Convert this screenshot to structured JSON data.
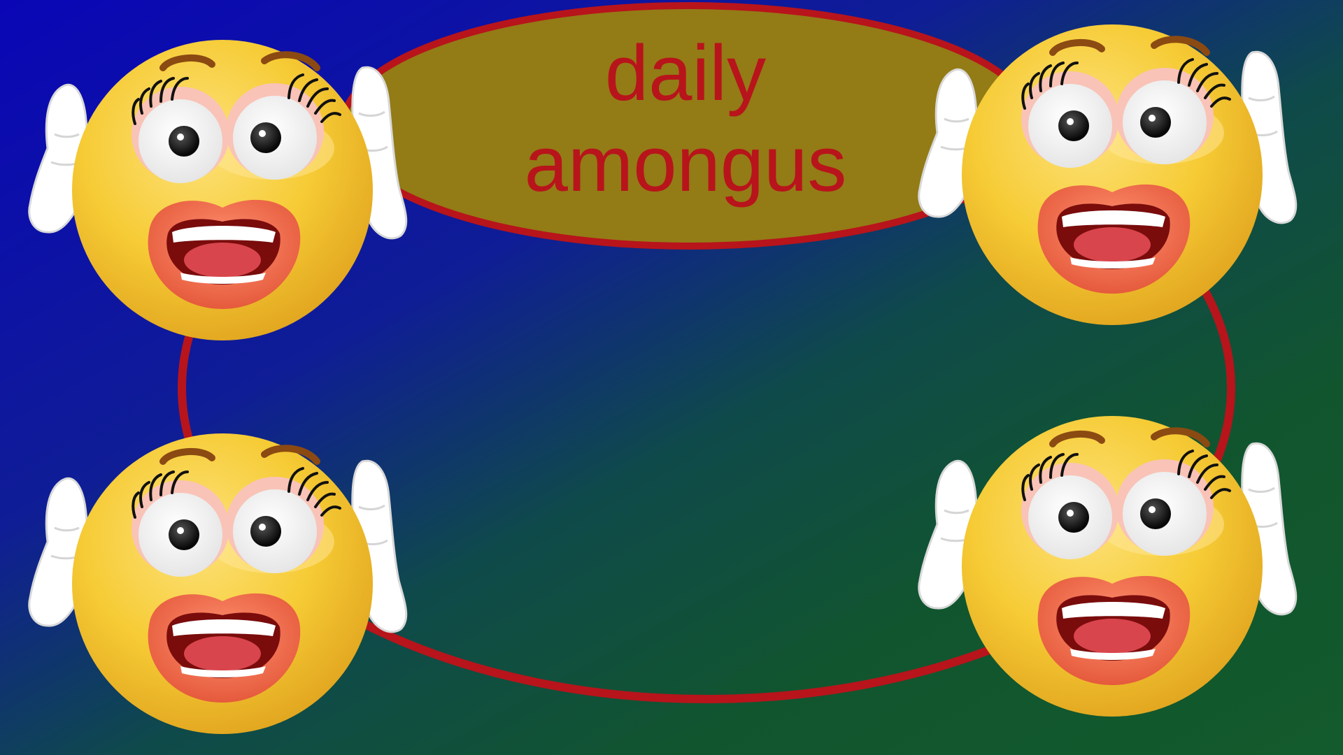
{
  "title": {
    "line1": "daily",
    "line2": "amongus"
  },
  "colors": {
    "background_top_left": "#0a0ab8",
    "background_bottom_right": "#12592d",
    "ring_stroke": "#b8141b",
    "title_fill": "#937b16",
    "title_text": "#b8141b",
    "face_yellow": "#f6cf3a",
    "glove_white": "#ffffff",
    "lip_color": "#ee6b4a"
  },
  "emojis": [
    {
      "name": "shocked-emoji-top-left",
      "icon": "shocked-face-icon"
    },
    {
      "name": "shocked-emoji-top-right",
      "icon": "shocked-face-icon"
    },
    {
      "name": "shocked-emoji-bottom-left",
      "icon": "shocked-face-icon"
    },
    {
      "name": "shocked-emoji-bottom-right",
      "icon": "shocked-face-icon"
    }
  ]
}
